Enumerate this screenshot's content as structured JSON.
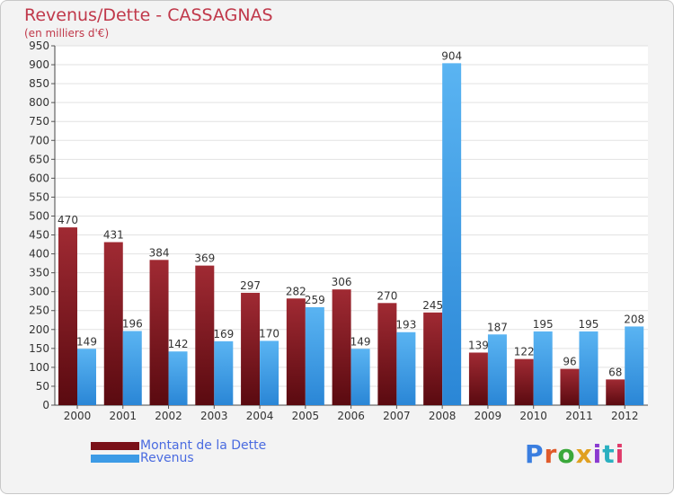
{
  "title": "Revenus/Dette - CASSAGNAS",
  "subtitle": "(en milliers d'€)",
  "logo": "Proxiti",
  "colors": {
    "dette": "#7a1018",
    "revenus": "#3d9be6",
    "title": "#c0384a",
    "legend_text": "#4a6be0"
  },
  "chart_data": {
    "type": "bar",
    "title": "Revenus/Dette - CASSAGNAS",
    "ylabel": "(en milliers d'€)",
    "categories": [
      "2000",
      "2001",
      "2002",
      "2003",
      "2004",
      "2005",
      "2006",
      "2007",
      "2008",
      "2009",
      "2010",
      "2011",
      "2012"
    ],
    "series": [
      {
        "name": "Montant de la Dette",
        "values": [
          470,
          431,
          384,
          369,
          297,
          282,
          306,
          270,
          245,
          139,
          122,
          96,
          68
        ]
      },
      {
        "name": "Revenus",
        "values": [
          149,
          196,
          142,
          169,
          170,
          259,
          149,
          193,
          904,
          187,
          195,
          195,
          208
        ]
      }
    ],
    "ylim": [
      0,
      950
    ],
    "yticks": [
      0,
      50,
      100,
      150,
      200,
      250,
      300,
      350,
      400,
      450,
      500,
      550,
      600,
      650,
      700,
      750,
      800,
      850,
      900,
      950
    ],
    "grid": true,
    "legend_position": "bottom-left"
  }
}
